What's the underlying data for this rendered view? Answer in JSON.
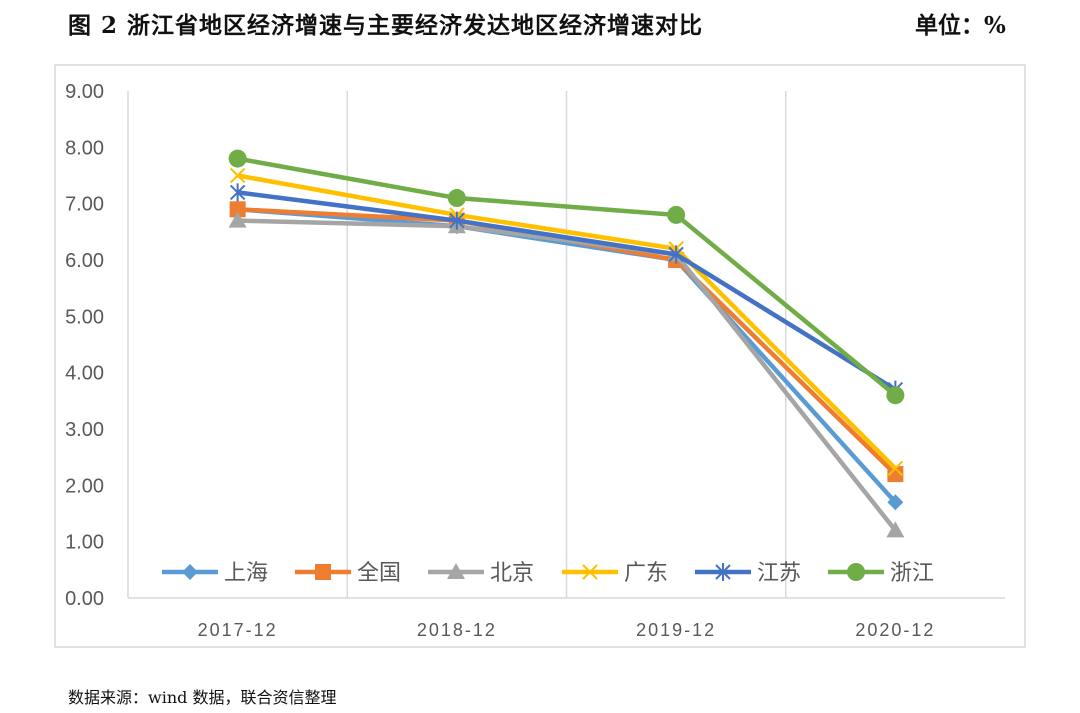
{
  "header": {
    "title": "图 2   浙江省地区经济增速与主要经济发达地区经济增速对比",
    "unit": "单位：%"
  },
  "footer": {
    "source": "数据来源：wind 数据，联合资信整理"
  },
  "chart_data": {
    "type": "line",
    "categories": [
      "2017-12",
      "2018-12",
      "2019-12",
      "2020-12"
    ],
    "ylim": [
      0,
      9
    ],
    "yticks": [
      "0.00",
      "1.00",
      "2.00",
      "3.00",
      "4.00",
      "5.00",
      "6.00",
      "7.00",
      "8.00",
      "9.00"
    ],
    "grid": "vertical",
    "legend": "bottom",
    "series": [
      {
        "name": "上海",
        "values": [
          6.9,
          6.6,
          6.0,
          1.7
        ],
        "color": "#5B9BD5",
        "marker": "diamond"
      },
      {
        "name": "全国",
        "values": [
          6.9,
          6.7,
          6.0,
          2.2
        ],
        "color": "#ED7D31",
        "marker": "square"
      },
      {
        "name": "北京",
        "values": [
          6.7,
          6.6,
          6.1,
          1.2
        ],
        "color": "#A5A5A5",
        "marker": "triangle"
      },
      {
        "name": "广东",
        "values": [
          7.5,
          6.8,
          6.2,
          2.3
        ],
        "color": "#FFC000",
        "marker": "x"
      },
      {
        "name": "江苏",
        "values": [
          7.2,
          6.7,
          6.1,
          3.7
        ],
        "color": "#4472C4",
        "marker": "star"
      },
      {
        "name": "浙江",
        "values": [
          7.8,
          7.1,
          6.8,
          3.6
        ],
        "color": "#70AD47",
        "marker": "circle"
      }
    ]
  }
}
